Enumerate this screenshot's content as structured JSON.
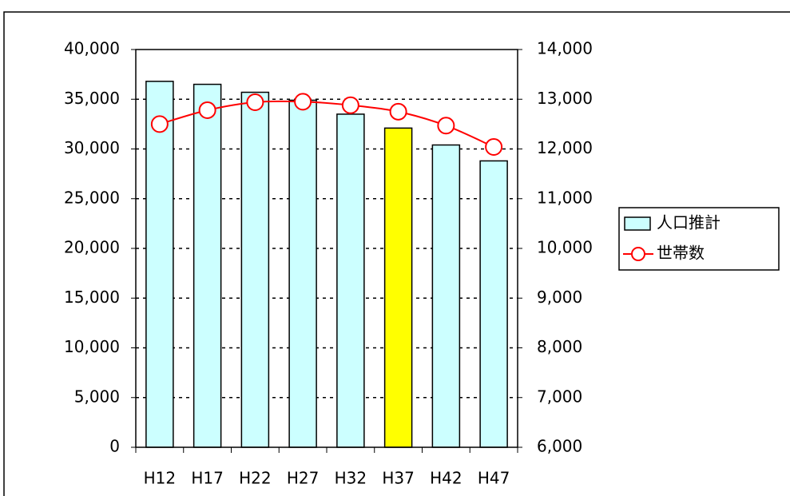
{
  "chart_data": {
    "type": "bar_line",
    "categories": [
      "H12",
      "H17",
      "H22",
      "H27",
      "H32",
      "H37",
      "H42",
      "H47"
    ],
    "series": [
      {
        "name": "人口推計",
        "type": "bar",
        "color": "#ccffff",
        "colors": [
          "#ccffff",
          "#ccffff",
          "#ccffff",
          "#ccffff",
          "#ccffff",
          "#ffff00",
          "#ccffff",
          "#ccffff"
        ],
        "values": [
          36800,
          36500,
          35700,
          34900,
          33500,
          32100,
          30400,
          28800
        ]
      },
      {
        "name": "世帯数",
        "type": "line",
        "axis": "y2",
        "color": "#ff0000",
        "values": [
          12500,
          12780,
          12940,
          12950,
          12880,
          12750,
          12470,
          12040
        ]
      }
    ],
    "ylim": [
      0,
      40000
    ],
    "yticks": [
      0,
      {
        "value": 5000,
        "label": "5,000"
      },
      {
        "value": 10000,
        "label": "10,000"
      },
      {
        "value": 15000,
        "label": "15,000"
      },
      {
        "value": 20000,
        "label": "20,000"
      },
      {
        "value": 25000,
        "label": "25,000"
      },
      {
        "value": 30000,
        "label": "30,000"
      },
      {
        "value": 35000,
        "label": "35,000"
      },
      {
        "value": 40000,
        "label": "40,000"
      }
    ],
    "y2lim": [
      6000,
      14000
    ],
    "y2ticks": [
      {
        "value": 6000,
        "label": "6,000"
      },
      {
        "value": 7000,
        "label": "7,000"
      },
      {
        "value": 8000,
        "label": "8,000"
      },
      {
        "value": 9000,
        "label": "9,000"
      },
      {
        "value": 10000,
        "label": "10,000"
      },
      {
        "value": 11000,
        "label": "11,000"
      },
      {
        "value": 12000,
        "label": "12,000"
      },
      {
        "value": 13000,
        "label": "13,000"
      },
      {
        "value": 14000,
        "label": "14,000"
      }
    ],
    "grid": true,
    "legend": "right"
  }
}
